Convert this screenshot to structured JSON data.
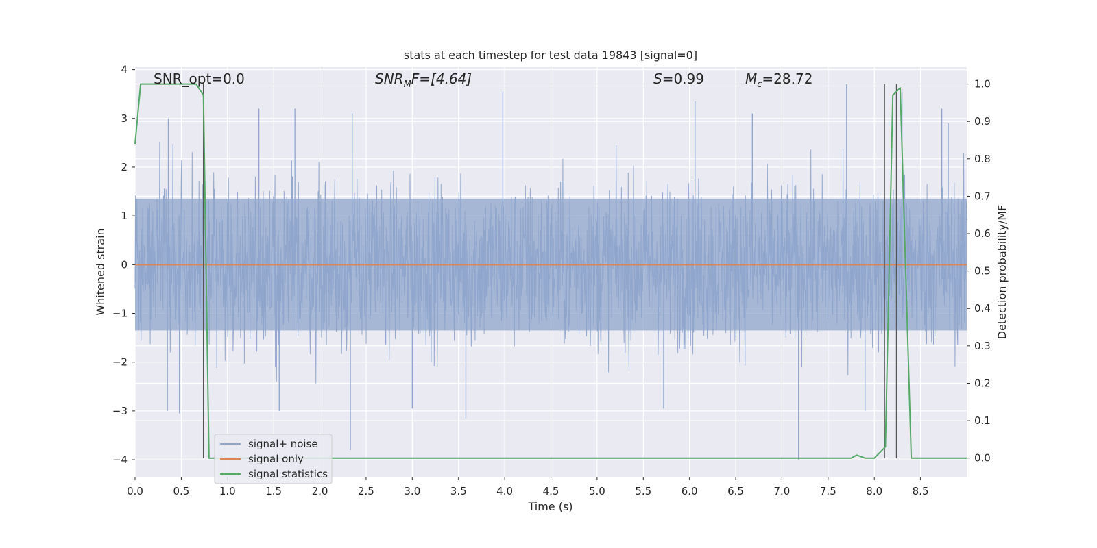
{
  "chart_data": {
    "type": "line",
    "title": "stats at each timestep for test data 19843 [signal=0]",
    "xlabel": "Time (s)",
    "ylabel_left": "Whitened strain",
    "ylabel_right": "Detection probability/MF",
    "xlim": [
      0.0,
      9.0
    ],
    "ylim_left": [
      -4.35,
      4.05
    ],
    "ylim_right": [
      -0.05,
      1.045
    ],
    "xticks": [
      "0.0",
      "0.5",
      "1.0",
      "1.5",
      "2.0",
      "2.5",
      "3.0",
      "3.5",
      "4.0",
      "4.5",
      "5.0",
      "5.5",
      "6.0",
      "6.5",
      "7.0",
      "7.5",
      "8.0",
      "8.5"
    ],
    "yticks_left": [
      "4",
      "3",
      "2",
      "1",
      "0",
      "−1",
      "−2",
      "−3",
      "−4"
    ],
    "yticks_right": [
      "1.0",
      "0.9",
      "0.8",
      "0.7",
      "0.6",
      "0.5",
      "0.4",
      "0.3",
      "0.2",
      "0.1",
      "0.0"
    ],
    "grid": true,
    "legend_position": "lower-left",
    "annotations": {
      "snr_opt": "SNR_opt=0.0",
      "snr_mf_sym": "SNR",
      "snr_mf_sub": "M",
      "snr_mf_rest": "F=[4.64]",
      "s_sym": "S",
      "s_rest": "=0.99",
      "mc_sym": "M",
      "mc_sub": "c",
      "mc_rest": "=28.72"
    },
    "series": [
      {
        "name": "signal+ noise",
        "axis": "left",
        "color": "#8fa5cc",
        "style": "noise band, approx. range -3.8 to 3.6, typical amplitude ±1.5",
        "extremes": [
          {
            "x": 0.06,
            "y": -1.15
          },
          {
            "x": 0.36,
            "y": 3.0
          },
          {
            "x": 0.35,
            "y": -3.0
          },
          {
            "x": 0.48,
            "y": -3.05
          },
          {
            "x": 1.34,
            "y": 3.2
          },
          {
            "x": 1.56,
            "y": -3.0
          },
          {
            "x": 1.73,
            "y": 3.2
          },
          {
            "x": 2.33,
            "y": -3.8
          },
          {
            "x": 2.35,
            "y": 3.1
          },
          {
            "x": 3.0,
            "y": -2.95
          },
          {
            "x": 3.58,
            "y": -3.15
          },
          {
            "x": 3.98,
            "y": 3.55
          },
          {
            "x": 5.72,
            "y": -2.95
          },
          {
            "x": 6.06,
            "y": 3.35
          },
          {
            "x": 6.68,
            "y": 3.1
          },
          {
            "x": 7.18,
            "y": -4.0
          },
          {
            "x": 7.7,
            "y": 3.7
          },
          {
            "x": 7.9,
            "y": -3.0
          },
          {
            "x": 8.3,
            "y": 3.6
          },
          {
            "x": 8.73,
            "y": 3.2
          },
          {
            "x": 8.8,
            "y": 2.9
          }
        ]
      },
      {
        "name": "signal only",
        "axis": "left",
        "color": "#dd8452",
        "x": [
          0.0,
          9.0
        ],
        "y": [
          0.0,
          0.0
        ]
      },
      {
        "name": "signal statistics",
        "axis": "right",
        "color": "#55a868",
        "x": [
          0.0,
          0.06,
          0.12,
          0.2,
          0.5,
          0.66,
          0.74,
          0.8,
          1.0,
          7.0,
          7.75,
          7.81,
          7.9,
          8.0,
          8.12,
          8.2,
          8.28,
          8.4,
          9.0
        ],
        "y": [
          0.84,
          1.0,
          1.0,
          1.0,
          1.0,
          1.0,
          0.97,
          0.0,
          0.0,
          0.0,
          0.0,
          0.008,
          0.0,
          0.0,
          0.03,
          0.97,
          0.99,
          0.0,
          0.0
        ]
      }
    ],
    "vertical_lines": [
      0.74,
      8.11,
      8.24
    ]
  }
}
